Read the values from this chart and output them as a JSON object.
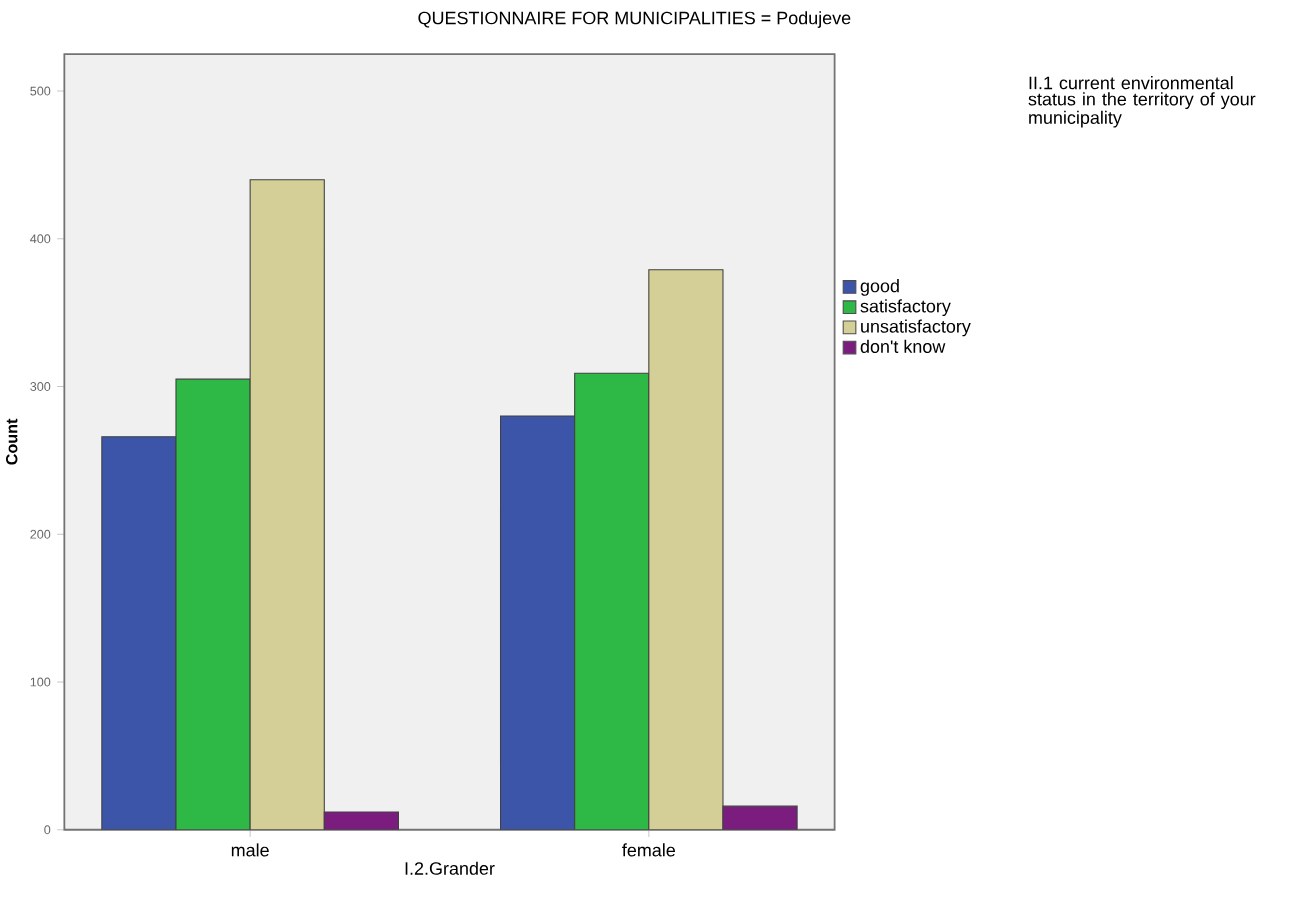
{
  "chart_data": {
    "type": "bar",
    "title": "QUESTIONNAIRE FOR MUNICIPALITIES = Podujeve",
    "xlabel": "I.2.Grander",
    "ylabel": "Count",
    "legend_title": "II.1 current environmental status in the territory of your municipality",
    "categories": [
      "male",
      "female"
    ],
    "series": [
      {
        "name": "good",
        "color": "#3c55a8",
        "values": [
          266,
          280
        ]
      },
      {
        "name": "satisfactory",
        "color": "#2eb845",
        "values": [
          305,
          309
        ]
      },
      {
        "name": "unsatisfactory",
        "color": "#d4cf96",
        "values": [
          440,
          379
        ]
      },
      {
        "name": "don't know",
        "color": "#7b1d7f",
        "values": [
          12,
          16
        ]
      }
    ],
    "ylim": [
      0,
      525
    ],
    "yticks": [
      0,
      100,
      200,
      300,
      400,
      500
    ],
    "grid": false,
    "legend": "right"
  }
}
